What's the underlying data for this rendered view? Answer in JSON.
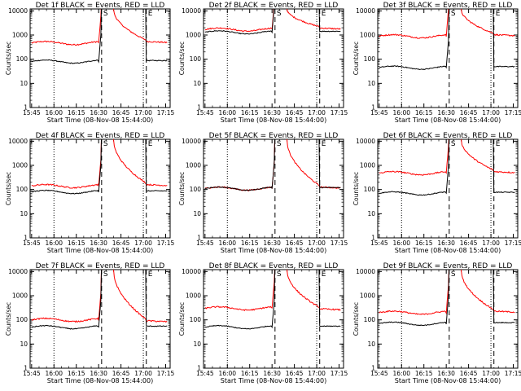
{
  "chart_data": {
    "type": "line",
    "xlabel": "Start Time (08-Nov-08 15:44:00)",
    "ylabel": "Counts/sec",
    "x_ticks": [
      "15:45",
      "16:00",
      "16:15",
      "16:30",
      "16:45",
      "17:00",
      "17:15"
    ],
    "y_ticks": [
      "1",
      "10",
      "100",
      "1000",
      "10000"
    ],
    "xlim_minutes_after_1545": [
      -1,
      93
    ],
    "ylim": [
      1,
      12000
    ],
    "y_scale": "log",
    "series_colors": {
      "events": "#000000",
      "lld": "#ff0000"
    },
    "event_markers": {
      "dotted_at": [
        "16:00",
        "17:00"
      ],
      "dashed_at": [
        "16:32",
        "17:02"
      ],
      "labels": [
        {
          "text": "S",
          "at": "16:32"
        },
        {
          "text": "E",
          "at": "17:02"
        }
      ]
    },
    "panels": [
      {
        "title": "Det 1f BLACK = Events, RED = LLD",
        "events_level": 80,
        "lld_level": 470,
        "lld_min": 470
      },
      {
        "title": "Det 2f BLACK = Events, RED = LLD",
        "events_level": 1300,
        "lld_level": 1700,
        "lld_min": 1700
      },
      {
        "title": "Det 3f BLACK = Events, RED = LLD",
        "events_level": 45,
        "lld_level": 900,
        "lld_min": 900
      },
      {
        "title": "Det 4f BLACK = Events, RED = LLD",
        "events_level": 80,
        "lld_level": 140,
        "lld_min": 140
      },
      {
        "title": "Det 5f BLACK = Events, RED = LLD",
        "events_level": 110,
        "lld_level": 110,
        "lld_min": 110
      },
      {
        "title": "Det 6f BLACK = Events, RED = LLD",
        "events_level": 70,
        "lld_level": 480,
        "lld_min": 480
      },
      {
        "title": "Det 7f BLACK = Events, RED = LLD",
        "events_level": 50,
        "lld_level": 100,
        "lld_min": 80
      },
      {
        "title": "Det 8f BLACK = Events, RED = LLD",
        "events_level": 50,
        "lld_level": 300,
        "lld_min": 250
      },
      {
        "title": "Det 9f BLACK = Events, RED = LLD",
        "events_level": 70,
        "lld_level": 200,
        "lld_min": 200
      }
    ]
  }
}
